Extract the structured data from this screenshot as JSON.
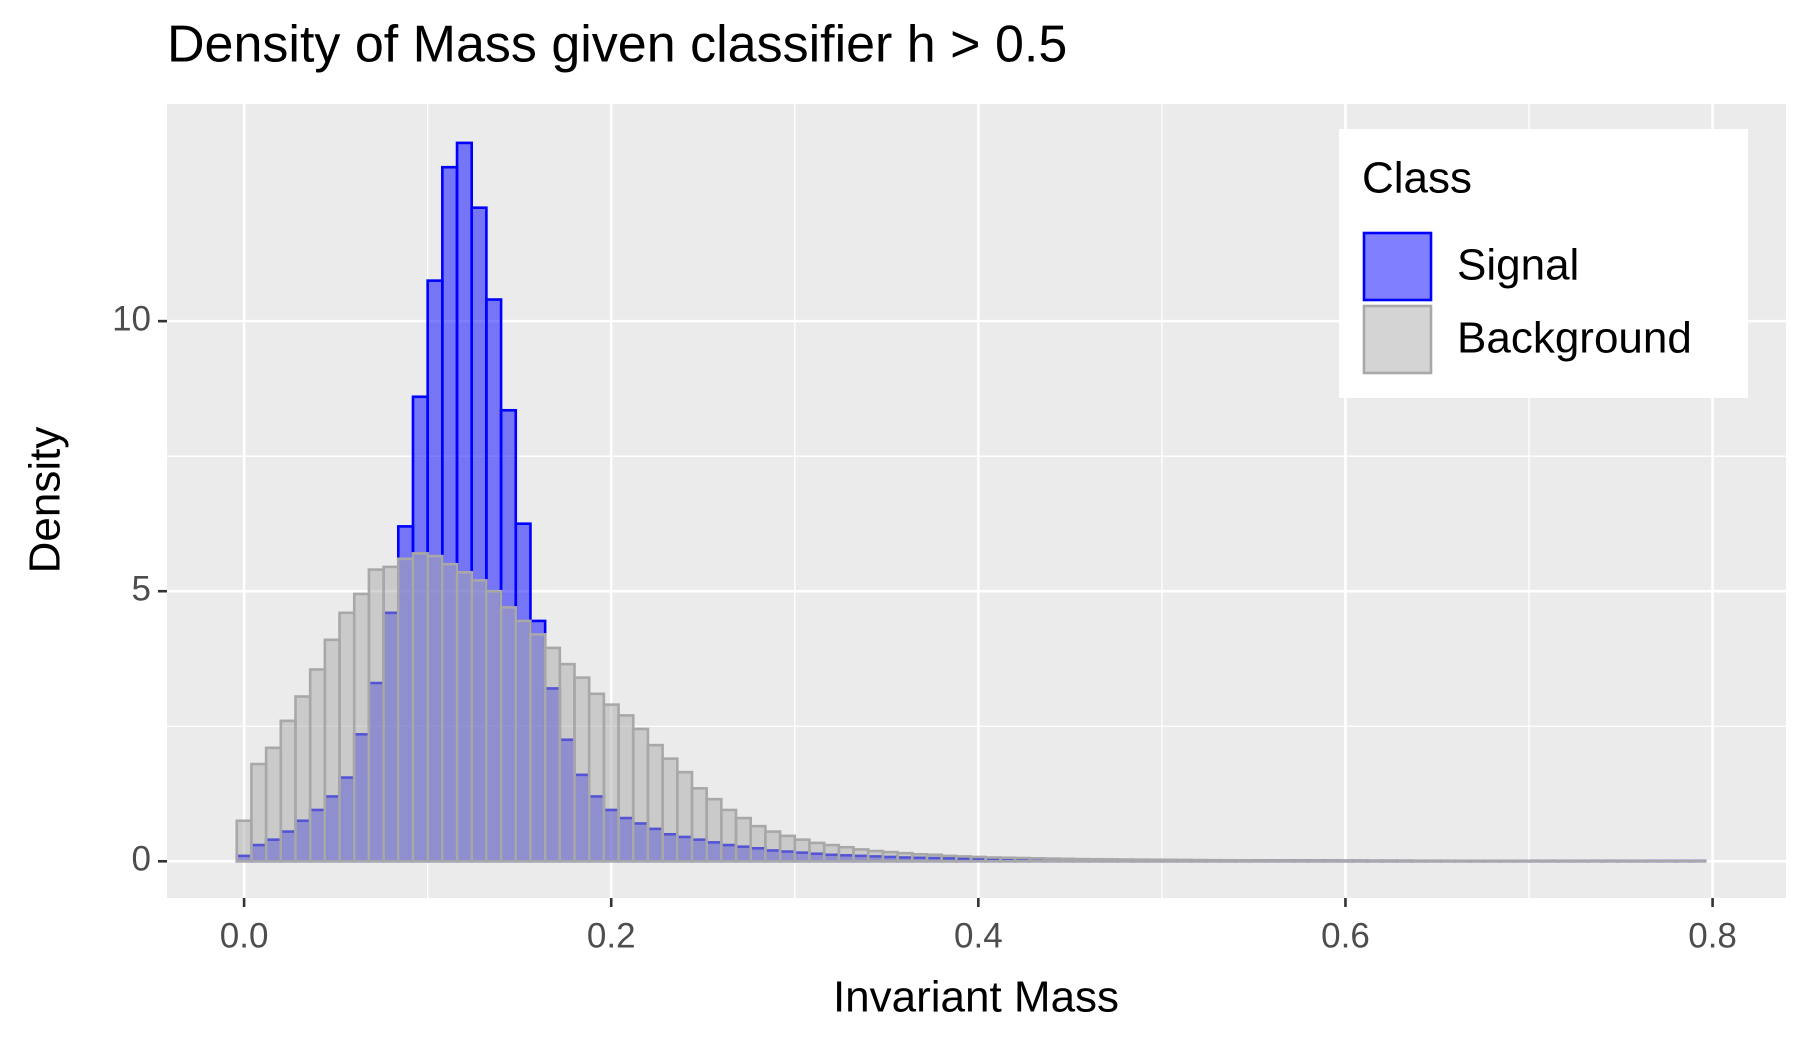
{
  "chart_data": {
    "type": "histogram",
    "title": "Density of Mass given classifier h > 0.5",
    "x_label": "Invariant Mass",
    "y_label": "Density",
    "legend_title": "Class",
    "legend_position": "top-right",
    "grid": true,
    "xlim": [
      -0.042,
      0.84
    ],
    "ylim": [
      -0.68,
      14.02
    ],
    "xticks": [
      {
        "value": 0,
        "label": "0.0"
      },
      0.2,
      0.4,
      0.6,
      0.8
    ],
    "yticks": [
      0,
      5,
      10
    ],
    "bins": [
      -0.004,
      0.004,
      0.012,
      0.02,
      0.028,
      0.036,
      0.044,
      0.052,
      0.06,
      0.068,
      0.076,
      0.084,
      0.092,
      0.1,
      0.108,
      0.116,
      0.124,
      0.132,
      0.14,
      0.148,
      0.156,
      0.164,
      0.172,
      0.18,
      0.188,
      0.196,
      0.204,
      0.212,
      0.22,
      0.228,
      0.236,
      0.244,
      0.252,
      0.26,
      0.268,
      0.276,
      0.284,
      0.292,
      0.3,
      0.308,
      0.316,
      0.324,
      0.332,
      0.34,
      0.348,
      0.356,
      0.364,
      0.372,
      0.38,
      0.388,
      0.396,
      0.404,
      0.412,
      0.42,
      0.428,
      0.436,
      0.444,
      0.452,
      0.46,
      0.468,
      0.476,
      0.484,
      0.492,
      0.5,
      0.508,
      0.516,
      0.524,
      0.532,
      0.54,
      0.548,
      0.556,
      0.564,
      0.572,
      0.58,
      0.588,
      0.596,
      0.604,
      0.612,
      0.62,
      0.628,
      0.636,
      0.644,
      0.652,
      0.66,
      0.668,
      0.676,
      0.684,
      0.692,
      0.7,
      0.708,
      0.716,
      0.724,
      0.732,
      0.74,
      0.748,
      0.756,
      0.764,
      0.772,
      0.78,
      0.788,
      0.796
    ],
    "series": [
      {
        "name": "Signal",
        "color": "#0000ff",
        "fill": "rgba(0,0,255,0.5)",
        "values": [
          0.1,
          0.3,
          0.4,
          0.55,
          0.75,
          0.95,
          1.2,
          1.55,
          2.35,
          3.3,
          4.6,
          6.2,
          8.6,
          10.75,
          12.85,
          13.3,
          12.1,
          10.4,
          8.35,
          6.25,
          4.45,
          3.2,
          2.25,
          1.6,
          1.2,
          0.95,
          0.8,
          0.7,
          0.6,
          0.5,
          0.45,
          0.4,
          0.35,
          0.3,
          0.27,
          0.24,
          0.2,
          0.18,
          0.16,
          0.14,
          0.12,
          0.11,
          0.1,
          0.09,
          0.08,
          0.07,
          0.065,
          0.06,
          0.055,
          0.05,
          0.045,
          0.042,
          0.04,
          0.037,
          0.035,
          0.032,
          0.03,
          0.028,
          0.026,
          0.025,
          0.024,
          0.022,
          0.021,
          0.02,
          0.019,
          0.018,
          0.017,
          0.016,
          0.015,
          0.015,
          0.014,
          0.013,
          0.013,
          0.012,
          0.012,
          0.011,
          0.011,
          0.01,
          0.01,
          0.01,
          0.009,
          0.009,
          0.009,
          0.008,
          0.008,
          0.008,
          0.007,
          0.007,
          0.007,
          0.007,
          0.006,
          0.006,
          0.006,
          0.006,
          0.005,
          0.005,
          0.005,
          0.005,
          0.005,
          0.005
        ]
      },
      {
        "name": "Background",
        "color": "#a8a8a8",
        "fill": "rgba(170,170,170,0.5)",
        "values": [
          0.75,
          1.8,
          2.1,
          2.6,
          3.05,
          3.55,
          4.1,
          4.6,
          4.95,
          5.4,
          5.45,
          5.6,
          5.7,
          5.65,
          5.5,
          5.35,
          5.2,
          5.0,
          4.7,
          4.45,
          4.2,
          3.95,
          3.65,
          3.4,
          3.1,
          2.9,
          2.7,
          2.45,
          2.15,
          1.9,
          1.65,
          1.35,
          1.15,
          0.95,
          0.8,
          0.65,
          0.55,
          0.47,
          0.4,
          0.34,
          0.3,
          0.26,
          0.22,
          0.19,
          0.17,
          0.15,
          0.13,
          0.12,
          0.1,
          0.09,
          0.08,
          0.07,
          0.065,
          0.06,
          0.055,
          0.05,
          0.045,
          0.04,
          0.038,
          0.035,
          0.032,
          0.03,
          0.028,
          0.026,
          0.024,
          0.022,
          0.02,
          0.019,
          0.018,
          0.017,
          0.016,
          0.015,
          0.014,
          0.013,
          0.013,
          0.012,
          0.012,
          0.011,
          0.011,
          0.01,
          0.01,
          0.01,
          0.009,
          0.009,
          0.009,
          0.008,
          0.008,
          0.008,
          0.007,
          0.007,
          0.007,
          0.007,
          0.006,
          0.006,
          0.006,
          0.006,
          0.005,
          0.005,
          0.005,
          0.005
        ]
      }
    ]
  }
}
